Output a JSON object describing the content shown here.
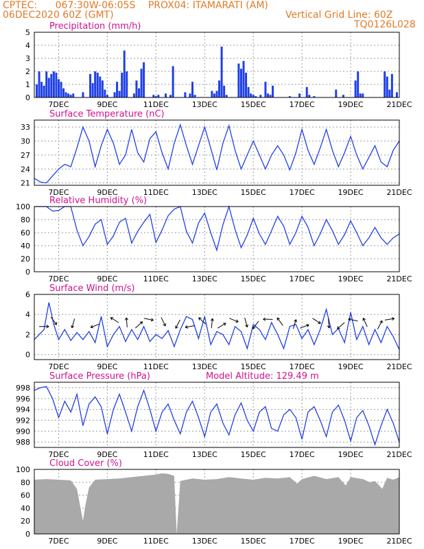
{
  "header": {
    "line1_left": "CPTEC:",
    "line1_coords": "067:30W-06:05S",
    "line1_station": "PROX04: ITAMARATI (AM)",
    "line2_date": "06DEC2020 60Z (GMT)",
    "line2_grid": "Vertical Grid Line: 60Z",
    "line3_code": "TQ0126L028"
  },
  "x_tick_labels": [
    "7DEC",
    "9DEC",
    "11DEC",
    "13DEC",
    "15DEC",
    "17DEC",
    "19DEC",
    "21DEC"
  ],
  "colors": {
    "header": "#e07a26",
    "title": "#d0118f",
    "series": "#1f3fe6",
    "cloud": "#a9a9a9"
  },
  "chart_data": [
    {
      "type": "bar",
      "title": "Precipitation (mm/h)",
      "ylim": [
        0,
        5
      ],
      "yticks": [
        "0",
        "1",
        "2",
        "3",
        "4",
        "5"
      ],
      "x_range_days": [
        6.0,
        21.0
      ],
      "x": [
        6.1,
        6.2,
        6.3,
        6.4,
        6.5,
        6.6,
        6.7,
        6.8,
        6.9,
        7.0,
        7.1,
        7.2,
        7.3,
        7.4,
        7.5,
        7.6,
        8.0,
        8.3,
        8.4,
        8.5,
        8.6,
        8.7,
        8.8,
        8.9,
        9.0,
        9.3,
        9.4,
        9.5,
        9.6,
        9.7,
        9.8,
        10.1,
        10.2,
        10.3,
        10.4,
        10.5,
        10.9,
        11.0,
        11.1,
        11.4,
        11.6,
        11.7,
        12.2,
        12.4,
        12.5,
        12.6,
        13.3,
        13.4,
        13.5,
        13.6,
        13.7,
        13.8,
        13.9,
        14.4,
        14.5,
        14.6,
        14.7,
        14.8,
        14.9,
        15.0,
        15.1,
        15.3,
        15.5,
        15.6,
        15.7,
        15.8,
        16.5,
        16.9,
        17.2,
        17.3,
        17.5,
        18.4,
        18.7,
        19.2,
        19.3,
        19.4,
        19.5,
        20.4,
        20.5,
        20.6,
        20.7,
        20.9
      ],
      "values": [
        1.0,
        2.0,
        1.2,
        0.9,
        2.0,
        1.5,
        1.8,
        2.0,
        1.9,
        1.4,
        1.2,
        0.7,
        0.4,
        0.3,
        0.2,
        0.3,
        0.4,
        1.8,
        1.1,
        2.0,
        1.9,
        1.6,
        1.3,
        0.6,
        0.2,
        0.4,
        1.2,
        0.5,
        1.9,
        3.6,
        2.0,
        0.3,
        1.3,
        0.7,
        2.2,
        2.7,
        0.2,
        0.1,
        0.2,
        0.3,
        0.2,
        2.4,
        0.4,
        0.3,
        1.2,
        0.2,
        0.5,
        0.3,
        0.5,
        1.3,
        3.9,
        0.9,
        0.2,
        2.6,
        2.2,
        2.8,
        1.9,
        0.8,
        0.3,
        0.2,
        0.1,
        0.2,
        1.2,
        0.3,
        0.2,
        0.9,
        0.1,
        0.3,
        0.8,
        0.2,
        0.1,
        0.6,
        0.2,
        1.3,
        2.0,
        0.3,
        0.3,
        2.0,
        1.6,
        0.6,
        1.8,
        0.4
      ]
    },
    {
      "type": "line",
      "title": "Surface Temperature (nC)",
      "ylim": [
        20.5,
        34.5
      ],
      "yticks": [
        "21",
        "24",
        "27",
        "30",
        "33"
      ],
      "x_range_days": [
        6.0,
        21.0
      ],
      "x": [
        6.0,
        6.25,
        6.5,
        6.75,
        7.0,
        7.25,
        7.5,
        7.75,
        8.0,
        8.25,
        8.5,
        8.75,
        9.0,
        9.25,
        9.5,
        9.75,
        10.0,
        10.25,
        10.5,
        10.75,
        11.0,
        11.25,
        11.5,
        11.75,
        12.0,
        12.25,
        12.5,
        12.75,
        13.0,
        13.25,
        13.5,
        13.75,
        14.0,
        14.25,
        14.5,
        14.75,
        15.0,
        15.25,
        15.5,
        15.75,
        16.0,
        16.25,
        16.5,
        16.75,
        17.0,
        17.25,
        17.5,
        17.75,
        18.0,
        18.25,
        18.5,
        18.75,
        19.0,
        19.25,
        19.5,
        19.75,
        20.0,
        20.25,
        20.5,
        20.75,
        21.0
      ],
      "values": [
        22.0,
        21.2,
        21.0,
        22.5,
        24.0,
        25.0,
        24.5,
        28.5,
        33.0,
        30.0,
        24.5,
        29.0,
        32.5,
        29.5,
        25.0,
        27.0,
        32.5,
        27.5,
        25.5,
        30.5,
        32.0,
        27.5,
        24.0,
        29.5,
        33.5,
        29.0,
        25.0,
        29.0,
        33.0,
        28.5,
        23.8,
        29.5,
        33.3,
        28.0,
        24.0,
        27.0,
        30.0,
        27.0,
        24.0,
        27.0,
        29.0,
        27.0,
        23.8,
        27.5,
        32.5,
        28.0,
        25.0,
        28.5,
        32.5,
        28.0,
        24.5,
        27.5,
        31.0,
        27.0,
        24.0,
        26.5,
        29.0,
        25.5,
        24.5,
        28.0,
        30.0
      ]
    },
    {
      "type": "line",
      "title": "Relative Humidity (%)",
      "ylim": [
        0,
        100
      ],
      "yticks": [
        "0",
        "20",
        "40",
        "60",
        "80",
        "100"
      ],
      "x_range_days": [
        6.0,
        21.0
      ],
      "x": [
        6.0,
        6.25,
        6.5,
        6.75,
        7.0,
        7.25,
        7.5,
        7.75,
        8.0,
        8.25,
        8.5,
        8.75,
        9.0,
        9.25,
        9.5,
        9.75,
        10.0,
        10.25,
        10.5,
        10.75,
        11.0,
        11.25,
        11.5,
        11.75,
        12.0,
        12.25,
        12.5,
        12.75,
        13.0,
        13.25,
        13.5,
        13.75,
        14.0,
        14.25,
        14.5,
        14.75,
        15.0,
        15.25,
        15.5,
        15.75,
        16.0,
        16.25,
        16.5,
        16.75,
        17.0,
        17.25,
        17.5,
        17.75,
        18.0,
        18.25,
        18.5,
        18.75,
        19.0,
        19.25,
        19.5,
        19.75,
        20.0,
        20.25,
        20.5,
        20.75,
        21.0
      ],
      "values": [
        100,
        100,
        100,
        93,
        94,
        100,
        100,
        64,
        40,
        54,
        73,
        80,
        42,
        55,
        76,
        82,
        44,
        62,
        76,
        88,
        45,
        64,
        86,
        96,
        100,
        62,
        44,
        75,
        90,
        60,
        33,
        72,
        100,
        65,
        37,
        56,
        82,
        58,
        42,
        63,
        85,
        70,
        42,
        60,
        85,
        68,
        40,
        58,
        80,
        63,
        42,
        57,
        78,
        60,
        40,
        52,
        68,
        52,
        42,
        52,
        58
      ]
    },
    {
      "type": "line",
      "title": "Surface Wind (m/s)",
      "ylim": [
        -0.5,
        6
      ],
      "yticks": [
        "0",
        "2",
        "4",
        "6"
      ],
      "x_range_days": [
        6.0,
        21.0
      ],
      "x": [
        6.0,
        6.2,
        6.4,
        6.6,
        6.8,
        7.0,
        7.25,
        7.5,
        7.75,
        8.0,
        8.25,
        8.5,
        8.75,
        9.0,
        9.25,
        9.5,
        9.75,
        10.0,
        10.25,
        10.5,
        10.75,
        11.0,
        11.25,
        11.5,
        11.75,
        12.0,
        12.25,
        12.5,
        12.75,
        13.0,
        13.25,
        13.5,
        13.75,
        14.0,
        14.25,
        14.5,
        14.75,
        15.0,
        15.25,
        15.5,
        15.75,
        16.0,
        16.25,
        16.5,
        16.75,
        17.0,
        17.25,
        17.5,
        17.75,
        18.0,
        18.25,
        18.5,
        18.75,
        19.0,
        19.25,
        19.5,
        19.75,
        20.0,
        20.25,
        20.5,
        20.75,
        21.0
      ],
      "values": [
        1.5,
        2.0,
        2.5,
        5.2,
        3.0,
        1.5,
        2.5,
        1.4,
        2.2,
        1.5,
        2.3,
        1.2,
        3.8,
        0.8,
        2.0,
        2.8,
        1.3,
        2.5,
        1.5,
        2.8,
        1.3,
        2.0,
        1.6,
        2.4,
        0.8,
        2.5,
        3.8,
        3.5,
        1.6,
        3.8,
        1.0,
        2.3,
        2.0,
        1.0,
        2.8,
        2.3,
        0.6,
        3.0,
        2.5,
        1.5,
        3.2,
        2.0,
        0.6,
        2.8,
        3.0,
        1.6,
        2.5,
        1.0,
        2.5,
        4.5,
        2.0,
        2.6,
        1.2,
        4.2,
        1.5,
        2.8,
        1.0,
        2.5,
        1.2,
        2.8,
        1.8,
        0.5
      ]
    },
    {
      "type": "line",
      "title": "Surface Pressure (hPa)",
      "subtitle": "Model Altitude: 129.49 m",
      "ylim": [
        987,
        999
      ],
      "yticks": [
        "988",
        "990",
        "992",
        "994",
        "996",
        "998"
      ],
      "x_range_days": [
        6.0,
        21.0
      ],
      "x": [
        6.0,
        6.25,
        6.5,
        6.75,
        7.0,
        7.25,
        7.5,
        7.75,
        8.0,
        8.25,
        8.5,
        8.75,
        9.0,
        9.25,
        9.5,
        9.75,
        10.0,
        10.25,
        10.5,
        10.75,
        11.0,
        11.25,
        11.5,
        11.75,
        12.0,
        12.25,
        12.5,
        12.75,
        13.0,
        13.25,
        13.5,
        13.75,
        14.0,
        14.25,
        14.5,
        14.75,
        15.0,
        15.25,
        15.5,
        15.75,
        16.0,
        16.25,
        16.5,
        16.75,
        17.0,
        17.25,
        17.5,
        17.75,
        18.0,
        18.25,
        18.5,
        18.75,
        19.0,
        19.25,
        19.5,
        19.75,
        20.0,
        20.25,
        20.5,
        20.75,
        21.0
      ],
      "values": [
        997.5,
        998.0,
        998.2,
        996.0,
        992.5,
        995.5,
        993.5,
        996.8,
        991.0,
        995.0,
        996.3,
        994.5,
        989.5,
        994.0,
        996.8,
        993.5,
        990.0,
        994.5,
        997.5,
        994.0,
        990.0,
        993.5,
        995.0,
        992.0,
        989.5,
        993.5,
        995.5,
        992.5,
        989.0,
        993.5,
        995.0,
        991.5,
        989.3,
        993.0,
        995.2,
        992.0,
        990.0,
        993.5,
        994.5,
        990.5,
        990.0,
        993.0,
        994.0,
        992.5,
        988.5,
        993.5,
        994.5,
        992.0,
        989.0,
        993.5,
        994.8,
        992.0,
        988.2,
        992.5,
        993.8,
        991.0,
        987.5,
        991.0,
        994.0,
        991.5,
        988.0
      ]
    },
    {
      "type": "area",
      "title": "Cloud Cover (%)",
      "ylim": [
        0,
        100
      ],
      "yticks": [
        "0",
        "20",
        "40",
        "60",
        "80",
        "100"
      ],
      "x_range_days": [
        6.0,
        21.0
      ],
      "x": [
        6.0,
        6.5,
        7.0,
        7.5,
        7.75,
        7.9,
        8.0,
        8.1,
        8.25,
        8.5,
        9.0,
        9.5,
        10.0,
        10.5,
        11.0,
        11.25,
        11.5,
        11.75,
        11.85,
        12.0,
        12.5,
        13.0,
        13.5,
        14.0,
        14.5,
        15.0,
        15.5,
        16.0,
        16.5,
        16.8,
        17.0,
        17.5,
        18.0,
        18.5,
        18.8,
        19.0,
        19.5,
        19.8,
        20.0,
        20.3,
        20.5,
        20.75,
        21.0
      ],
      "values": [
        84,
        85,
        84,
        83,
        70,
        40,
        20,
        45,
        72,
        84,
        85,
        86,
        88,
        90,
        92,
        94,
        93,
        90,
        0,
        82,
        86,
        84,
        85,
        88,
        86,
        84,
        87,
        86,
        88,
        78,
        85,
        90,
        85,
        88,
        75,
        88,
        85,
        80,
        82,
        70,
        87,
        84,
        88
      ]
    }
  ]
}
